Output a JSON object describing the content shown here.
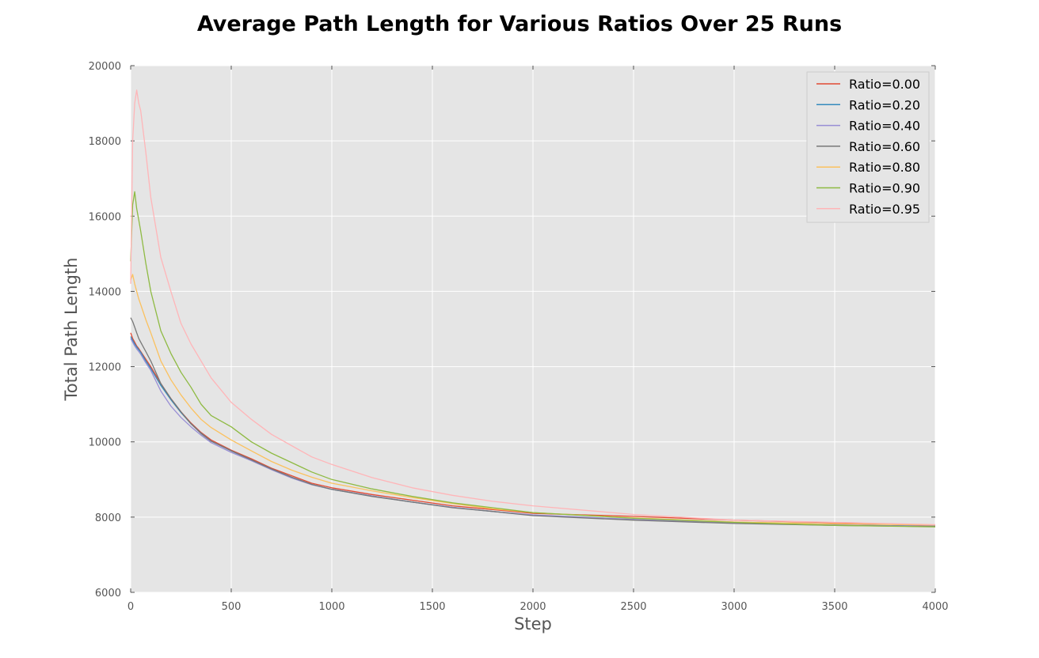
{
  "chart_data": {
    "type": "line",
    "title": "Average Path Length for Various Ratios Over 25 Runs",
    "xlabel": "Step",
    "ylabel": "Total Path Length",
    "xlim": [
      0,
      4000
    ],
    "ylim": [
      6000,
      20000
    ],
    "xticks": [
      0,
      500,
      1000,
      1500,
      2000,
      2500,
      3000,
      3500,
      4000
    ],
    "yticks": [
      6000,
      8000,
      10000,
      12000,
      14000,
      16000,
      18000,
      20000
    ],
    "grid": true,
    "legend_position": "top-right",
    "x": [
      0,
      10,
      20,
      30,
      40,
      50,
      75,
      100,
      150,
      200,
      250,
      300,
      350,
      400,
      500,
      600,
      700,
      800,
      900,
      1000,
      1200,
      1400,
      1600,
      1800,
      2000,
      2500,
      3000,
      3500,
      4000
    ],
    "series": [
      {
        "name": "Ratio=0.00",
        "color": "#e24a33",
        "values": [
          12900,
          12750,
          12650,
          12550,
          12480,
          12400,
          12200,
          12000,
          11550,
          11150,
          10800,
          10500,
          10250,
          10050,
          9780,
          9550,
          9300,
          9100,
          8900,
          8780,
          8600,
          8450,
          8300,
          8200,
          8100,
          8020,
          7920,
          7850,
          7780
        ]
      },
      {
        "name": "Ratio=0.20",
        "color": "#348abd",
        "values": [
          12800,
          12700,
          12600,
          12520,
          12450,
          12380,
          12150,
          11950,
          11500,
          11120,
          10780,
          10480,
          10230,
          10020,
          9760,
          9520,
          9280,
          9060,
          8870,
          8740,
          8560,
          8400,
          8260,
          8150,
          8050,
          7930,
          7840,
          7790,
          7760
        ]
      },
      {
        "name": "Ratio=0.40",
        "color": "#988ed5",
        "values": [
          12750,
          12650,
          12550,
          12470,
          12400,
          12330,
          12100,
          11900,
          11350,
          10950,
          10650,
          10400,
          10180,
          9980,
          9720,
          9500,
          9260,
          9040,
          8860,
          8740,
          8560,
          8400,
          8260,
          8150,
          8060,
          7940,
          7840,
          7790,
          7760
        ]
      },
      {
        "name": "Ratio=0.60",
        "color": "#777777",
        "values": [
          13300,
          13200,
          13050,
          12900,
          12750,
          12650,
          12400,
          12150,
          11550,
          11150,
          10800,
          10480,
          10220,
          10020,
          9760,
          9520,
          9280,
          9060,
          8870,
          8740,
          8550,
          8400,
          8250,
          8150,
          8040,
          7920,
          7830,
          7780,
          7750
        ]
      },
      {
        "name": "Ratio=0.80",
        "color": "#fbc15e",
        "values": [
          14300,
          14450,
          14200,
          14000,
          13800,
          13650,
          13250,
          12900,
          12150,
          11650,
          11250,
          10900,
          10600,
          10380,
          10050,
          9760,
          9480,
          9250,
          9060,
          8900,
          8700,
          8520,
          8360,
          8220,
          8120,
          7980,
          7870,
          7820,
          7790
        ]
      },
      {
        "name": "Ratio=0.90",
        "color": "#8eba42",
        "values": [
          14800,
          16300,
          16650,
          16200,
          15900,
          15600,
          14750,
          14000,
          12950,
          12350,
          11850,
          11450,
          11000,
          10700,
          10400,
          10000,
          9700,
          9450,
          9200,
          9000,
          8750,
          8550,
          8380,
          8250,
          8120,
          7970,
          7860,
          7780,
          7740
        ]
      },
      {
        "name": "Ratio=0.95",
        "color": "#ffb5b8",
        "values": [
          14200,
          18000,
          19000,
          19350,
          19000,
          18800,
          17700,
          16500,
          14900,
          14000,
          13150,
          12600,
          12150,
          11700,
          11050,
          10600,
          10200,
          9900,
          9600,
          9400,
          9050,
          8780,
          8580,
          8420,
          8300,
          8070,
          7920,
          7860,
          7800
        ]
      }
    ]
  }
}
